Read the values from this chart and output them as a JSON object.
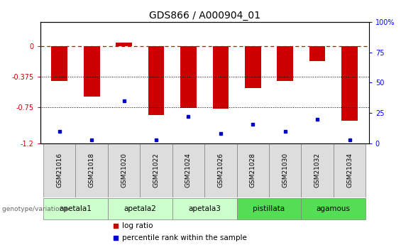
{
  "title": "GDS866 / A000904_01",
  "samples": [
    "GSM21016",
    "GSM21018",
    "GSM21020",
    "GSM21022",
    "GSM21024",
    "GSM21026",
    "GSM21028",
    "GSM21030",
    "GSM21032",
    "GSM21034"
  ],
  "log_ratio": [
    -0.43,
    -0.62,
    0.05,
    -0.85,
    -0.76,
    -0.77,
    -0.52,
    -0.43,
    -0.18,
    -0.92
  ],
  "percentile_rank": [
    10,
    3,
    35,
    3,
    22,
    8,
    16,
    10,
    20,
    3
  ],
  "ylim_left": [
    -1.2,
    0.3
  ],
  "ylim_right": [
    0,
    100
  ],
  "yticks_left": [
    0,
    -0.375,
    -0.75,
    -1.2
  ],
  "yticks_right": [
    0,
    25,
    50,
    75,
    100
  ],
  "bar_color": "#CC0000",
  "dot_color": "#0000CC",
  "groups": [
    {
      "name": "apetala1",
      "start": 0,
      "end": 1,
      "color": "#CCFFCC"
    },
    {
      "name": "apetala2",
      "start": 2,
      "end": 3,
      "color": "#CCFFCC"
    },
    {
      "name": "apetala3",
      "start": 4,
      "end": 5,
      "color": "#CCFFCC"
    },
    {
      "name": "pistillata",
      "start": 6,
      "end": 7,
      "color": "#55DD55"
    },
    {
      "name": "agamous",
      "start": 8,
      "end": 9,
      "color": "#55DD55"
    }
  ],
  "legend_red": "log ratio",
  "legend_blue": "percentile rank within the sample",
  "bar_width": 0.5,
  "title_fontsize": 10,
  "tick_fontsize": 7
}
